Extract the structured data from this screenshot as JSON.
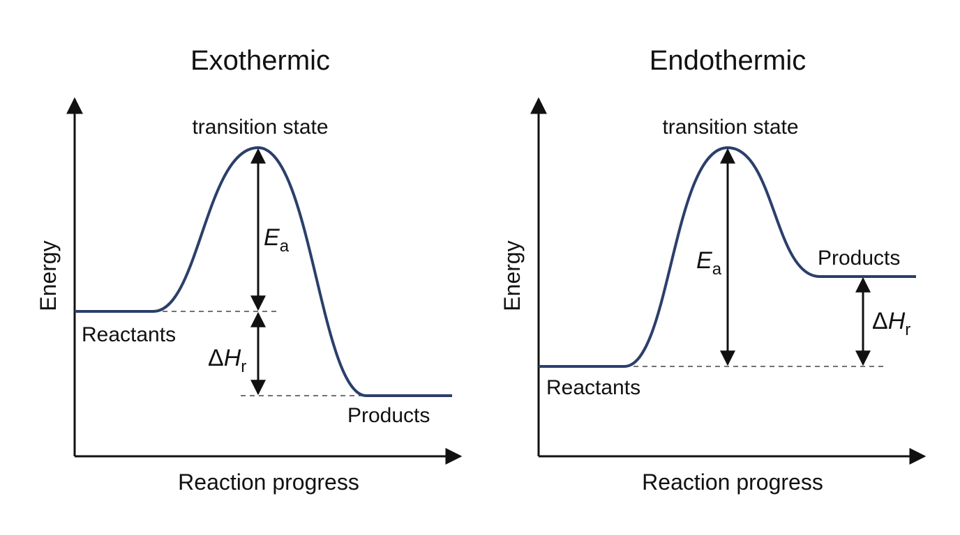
{
  "panels": [
    {
      "title": "Exothermic",
      "y_label": "Energy",
      "x_label": "Reaction progress",
      "peak_label": "transition state",
      "reactants_label": "Reactants",
      "products_label": "Products",
      "ea": {
        "symbol": "E",
        "subscript": "a"
      },
      "dh": {
        "delta": "Δ",
        "symbol": "H",
        "subscript": "r"
      }
    },
    {
      "title": "Endothermic",
      "y_label": "Energy",
      "x_label": "Reaction progress",
      "peak_label": "transition state",
      "reactants_label": "Reactants",
      "products_label": "Products",
      "ea": {
        "symbol": "E",
        "subscript": "a"
      },
      "dh": {
        "delta": "Δ",
        "symbol": "H",
        "subscript": "r"
      }
    }
  ]
}
